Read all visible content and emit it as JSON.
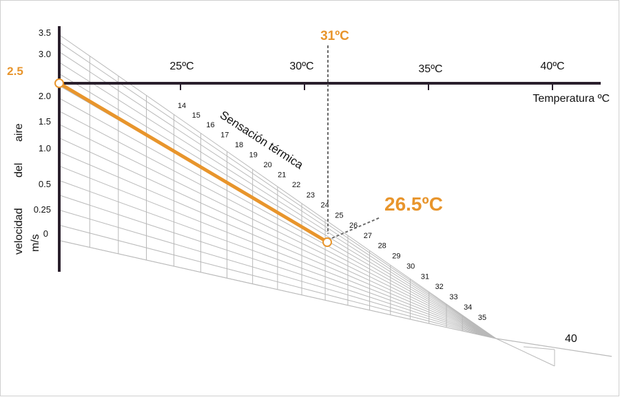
{
  "colors": {
    "accent": "#e8952c",
    "axis": "#2a1f2c",
    "grid": "#b9b9b9",
    "dashed": "#6b6b6b",
    "text": "#111111",
    "frame": "#cfcfcf"
  },
  "temperature_axis": {
    "label": "Temperatura ºC",
    "ticks": [
      "25ºC",
      "30ºC",
      "35ºC",
      "40ºC"
    ]
  },
  "air_speed_axis": {
    "label_words": [
      "velocidad",
      "del",
      "aire"
    ],
    "unit": "m/s",
    "ticks": [
      "3.5",
      "3.0",
      "2.0",
      "1.5",
      "1.0",
      "0.5",
      "0.25",
      "0"
    ]
  },
  "sensation_scale": {
    "label": "Sensación térmica",
    "values": [
      "14",
      "15",
      "16",
      "17",
      "18",
      "19",
      "20",
      "21",
      "22",
      "23",
      "24",
      "25",
      "26",
      "27",
      "28",
      "29",
      "30",
      "31",
      "32",
      "33",
      "34",
      "35"
    ],
    "end_value": "40"
  },
  "example": {
    "air_speed_value": "2.5",
    "temperature_value": "31ºC",
    "result_value": "26.5ºC"
  }
}
